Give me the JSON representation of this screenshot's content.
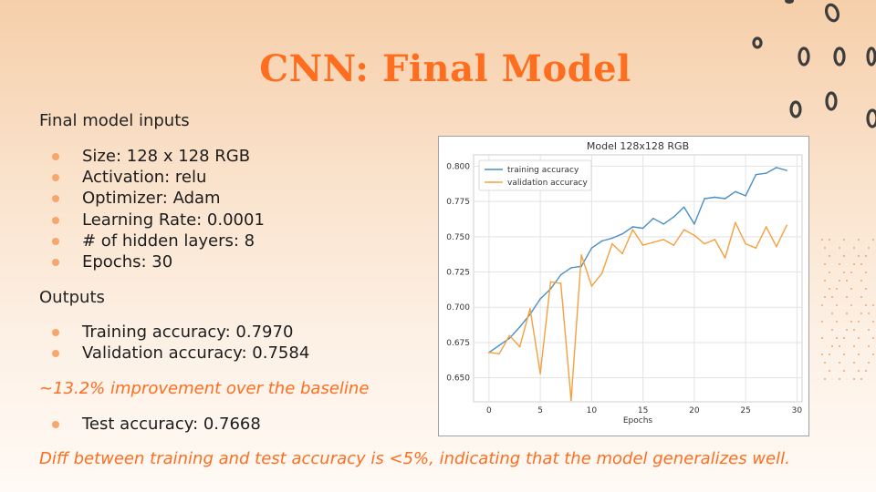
{
  "slide": {
    "title": "CNN: Final Model",
    "inputs_heading": "Final model inputs",
    "inputs": [
      "Size: 128 x 128 RGB",
      "Activation: relu",
      "Optimizer: Adam",
      "Learning Rate: 0.0001",
      "# of hidden layers: 8",
      "Epochs: 30"
    ],
    "outputs_heading": "Outputs",
    "outputs": [
      "Training accuracy: 0.7970",
      "Validation accuracy: 0.7584"
    ],
    "improvement_note": "~13.2% improvement over the baseline",
    "test_items": [
      "Test accuracy: 0.7668"
    ],
    "conclusion": "Diff between training and test accuracy is <5%, indicating that the model generalizes well."
  },
  "colors": {
    "accent": "#ff6d1f",
    "bullet": "#f7a66c",
    "training_series": "#4b8fc4",
    "validation_series": "#f5a03d"
  },
  "chart_data": {
    "type": "line",
    "title": "Model 128x128 RGB",
    "xlabel": "Epochs",
    "ylabel": "",
    "xlim": [
      -1.5,
      30.5
    ],
    "ylim": [
      0.633,
      0.808
    ],
    "xticks": [
      0,
      5,
      10,
      15,
      20,
      25,
      30
    ],
    "yticks": [
      0.65,
      0.675,
      0.7,
      0.725,
      0.75,
      0.775,
      0.8
    ],
    "ytick_labels": [
      "0.650",
      "0.675",
      "0.700",
      "0.725",
      "0.750",
      "0.775",
      "0.800"
    ],
    "grid": true,
    "legend_position": "top-left",
    "x": [
      0,
      1,
      2,
      3,
      4,
      5,
      6,
      7,
      8,
      9,
      10,
      11,
      12,
      13,
      14,
      15,
      16,
      17,
      18,
      19,
      20,
      21,
      22,
      23,
      24,
      25,
      26,
      27,
      28,
      29
    ],
    "series": [
      {
        "name": "training accuracy",
        "color": "#4b8fc4",
        "values": [
          0.668,
          0.673,
          0.678,
          0.686,
          0.695,
          0.706,
          0.713,
          0.723,
          0.728,
          0.729,
          0.742,
          0.747,
          0.749,
          0.752,
          0.757,
          0.756,
          0.763,
          0.759,
          0.764,
          0.771,
          0.759,
          0.777,
          0.778,
          0.777,
          0.782,
          0.779,
          0.794,
          0.795,
          0.799,
          0.797
        ]
      },
      {
        "name": "validation accuracy",
        "color": "#f5a03d",
        "values": [
          0.668,
          0.667,
          0.68,
          0.672,
          0.699,
          0.653,
          0.718,
          0.717,
          0.634,
          0.737,
          0.715,
          0.724,
          0.745,
          0.738,
          0.755,
          0.744,
          0.746,
          0.748,
          0.744,
          0.755,
          0.751,
          0.745,
          0.748,
          0.735,
          0.76,
          0.745,
          0.742,
          0.757,
          0.743,
          0.758
        ]
      }
    ]
  }
}
